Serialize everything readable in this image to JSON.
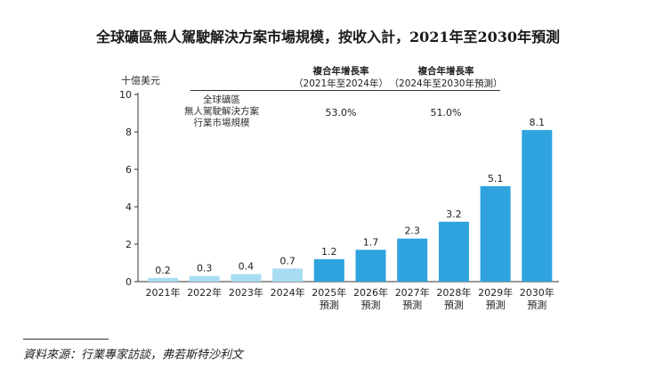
{
  "chart_data": {
    "type": "bar",
    "title": "全球礦區無人駕駛解決方案市場規模，按收入計，2021年至2030年預測",
    "ylabel": "十億美元",
    "ylim": [
      0,
      10
    ],
    "yticks": [
      "0",
      "2",
      "4",
      "6",
      "8",
      "10"
    ],
    "categories": [
      {
        "l1": "2021年",
        "l2": ""
      },
      {
        "l1": "2022年",
        "l2": ""
      },
      {
        "l1": "2023年",
        "l2": ""
      },
      {
        "l1": "2024年",
        "l2": ""
      },
      {
        "l1": "2025年",
        "l2": "預測"
      },
      {
        "l1": "2026年",
        "l2": "預測"
      },
      {
        "l1": "2027年",
        "l2": "預測"
      },
      {
        "l1": "2028年",
        "l2": "預測"
      },
      {
        "l1": "2029年",
        "l2": "預測"
      },
      {
        "l1": "2030年",
        "l2": "預測"
      }
    ],
    "values": [
      0.2,
      0.3,
      0.4,
      0.7,
      1.2,
      1.7,
      2.3,
      3.2,
      5.1,
      8.1
    ],
    "value_labels": [
      "0.2",
      "0.3",
      "0.4",
      "0.7",
      "1.2",
      "1.7",
      "2.3",
      "3.2",
      "5.1",
      "8.1"
    ],
    "historical_color": "#a8dcf3",
    "forecast_color": "#2ea3de",
    "series_label": [
      "全球礦區",
      "無人駕駛解決方案",
      "行業市場規模"
    ],
    "cagr": [
      {
        "title": "複合年增長率",
        "period": "（2021年至2024年）",
        "value": "53.0%"
      },
      {
        "title": "複合年增長率",
        "period": "（2024年至2030年預測）",
        "value": "51.0%"
      }
    ]
  },
  "source": "資料來源：行業專家訪談，弗若斯特沙利文"
}
